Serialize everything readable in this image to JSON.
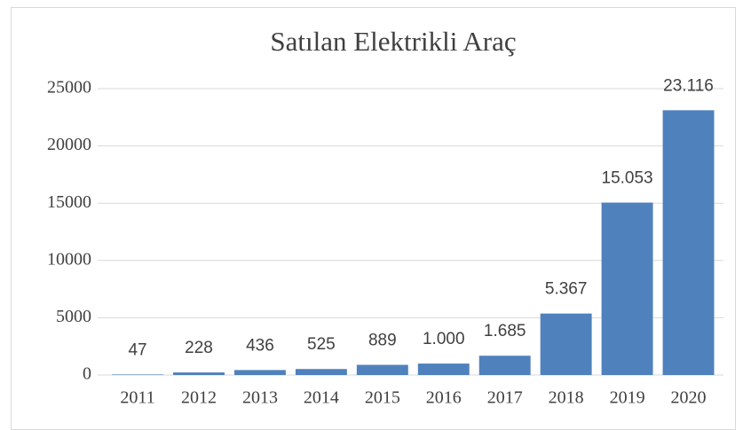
{
  "chart_data": {
    "type": "bar",
    "title": "Satılan Elektrikli Araç",
    "categories": [
      "2011",
      "2012",
      "2013",
      "2014",
      "2015",
      "2016",
      "2017",
      "2018",
      "2019",
      "2020"
    ],
    "values": [
      47,
      228,
      436,
      525,
      889,
      1000,
      1685,
      5367,
      15053,
      23116
    ],
    "value_labels": [
      "47",
      "228",
      "436",
      "525",
      "889",
      "1.000",
      "1.685",
      "5.367",
      "15.053",
      "23.116"
    ],
    "color": "#4f81bd",
    "ylim": [
      0,
      25000
    ],
    "yticks": [
      0,
      5000,
      10000,
      15000,
      20000,
      25000
    ],
    "grid": true
  }
}
